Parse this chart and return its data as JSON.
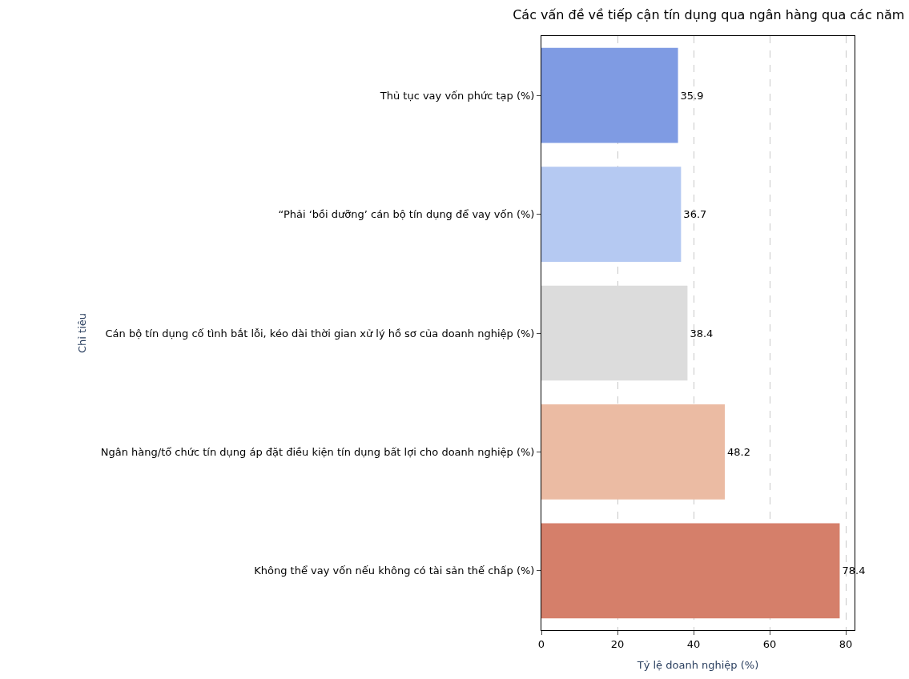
{
  "chart_data": {
    "type": "bar",
    "orientation": "horizontal",
    "title": "Các vấn đề về tiếp cận tín dụng qua ngân hàng qua các năm",
    "xlabel": "Tỷ lệ doanh nghiệp (%)",
    "ylabel": "Chỉ tiêu",
    "categories": [
      "Thủ tục vay vốn phức tạp (%)",
      "“Phải ‘bồi dưỡng’ cán bộ tín dụng để vay vốn (%)",
      "Cán bộ tín dụng cố tình bắt lỗi, kéo dài thời gian xử lý hồ sơ của doanh nghiệp (%)",
      "Ngân hàng/tổ chức tín dụng áp đặt điều kiện tín dụng bất lợi cho doanh nghiệp (%)",
      "Không thể vay vốn nếu không có tài sản thế chấp (%)"
    ],
    "values": [
      35.9,
      36.7,
      38.4,
      48.2,
      78.4
    ],
    "colors": [
      "#7f9be3",
      "#b5c9f2",
      "#dcdcdc",
      "#ebbba3",
      "#d57f6a"
    ],
    "xlim": [
      0,
      82.3
    ],
    "xticks": [
      0,
      20,
      40,
      60,
      80
    ],
    "grid": "x",
    "data_labels": true
  }
}
